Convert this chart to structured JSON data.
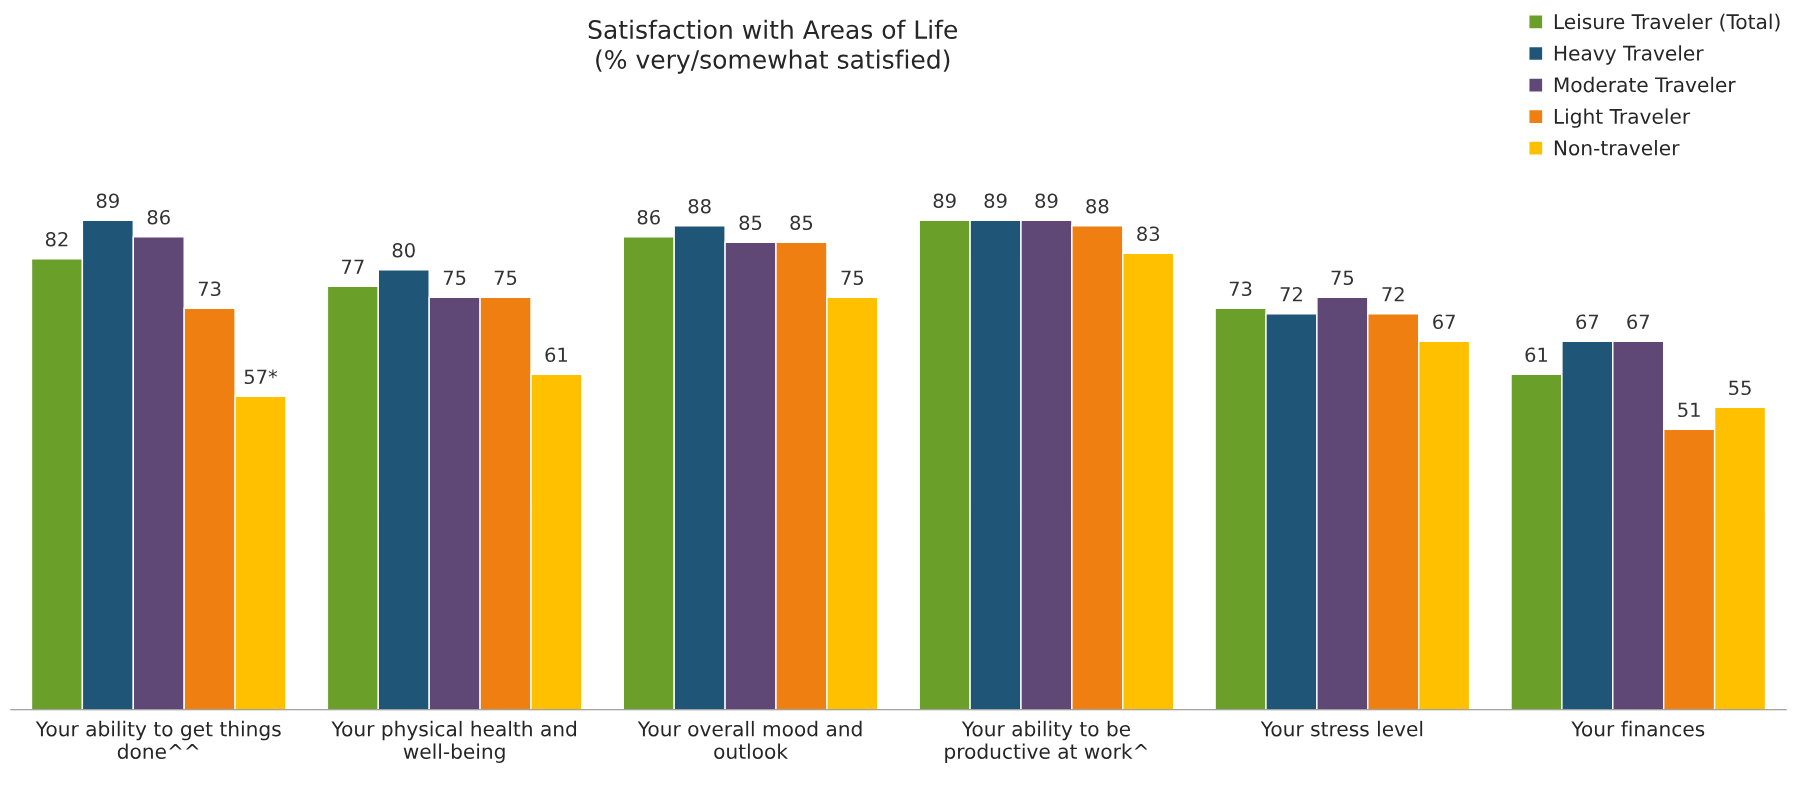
{
  "chart_data": {
    "type": "bar",
    "title": "Satisfaction with Areas of Life\n(% very/somewhat satisfied)",
    "categories": [
      "Your ability to get things\ndone^^",
      "Your physical health and\nwell-being",
      "Your overall mood and\noutlook",
      "Your ability to be\nproductive at work^",
      "Your stress level",
      "Your finances"
    ],
    "series": [
      {
        "name": "Leisure Traveler (Total)",
        "color": "#6a9f2a",
        "values": [
          82,
          77,
          86,
          89,
          73,
          61
        ],
        "value_labels": [
          "82",
          "77",
          "86",
          "89",
          "73",
          "61"
        ]
      },
      {
        "name": "Heavy Traveler",
        "color": "#1f5678",
        "values": [
          89,
          80,
          88,
          89,
          72,
          67
        ],
        "value_labels": [
          "89",
          "80",
          "88",
          "89",
          "72",
          "67"
        ]
      },
      {
        "name": "Moderate Traveler",
        "color": "#5f4876",
        "values": [
          86,
          75,
          85,
          89,
          75,
          67
        ],
        "value_labels": [
          "86",
          "75",
          "85",
          "89",
          "75",
          "67"
        ]
      },
      {
        "name": "Light Traveler",
        "color": "#ef7f10",
        "values": [
          73,
          75,
          85,
          88,
          72,
          51
        ],
        "value_labels": [
          "73",
          "75",
          "85",
          "88",
          "72",
          "51"
        ]
      },
      {
        "name": "Non-traveler",
        "color": "#ffc000",
        "values": [
          57,
          61,
          75,
          83,
          67,
          55
        ],
        "value_labels": [
          "57*",
          "61",
          "75",
          "83",
          "67",
          "55"
        ]
      }
    ],
    "tick_labels": "x",
    "grid": false,
    "legend": "top right"
  }
}
